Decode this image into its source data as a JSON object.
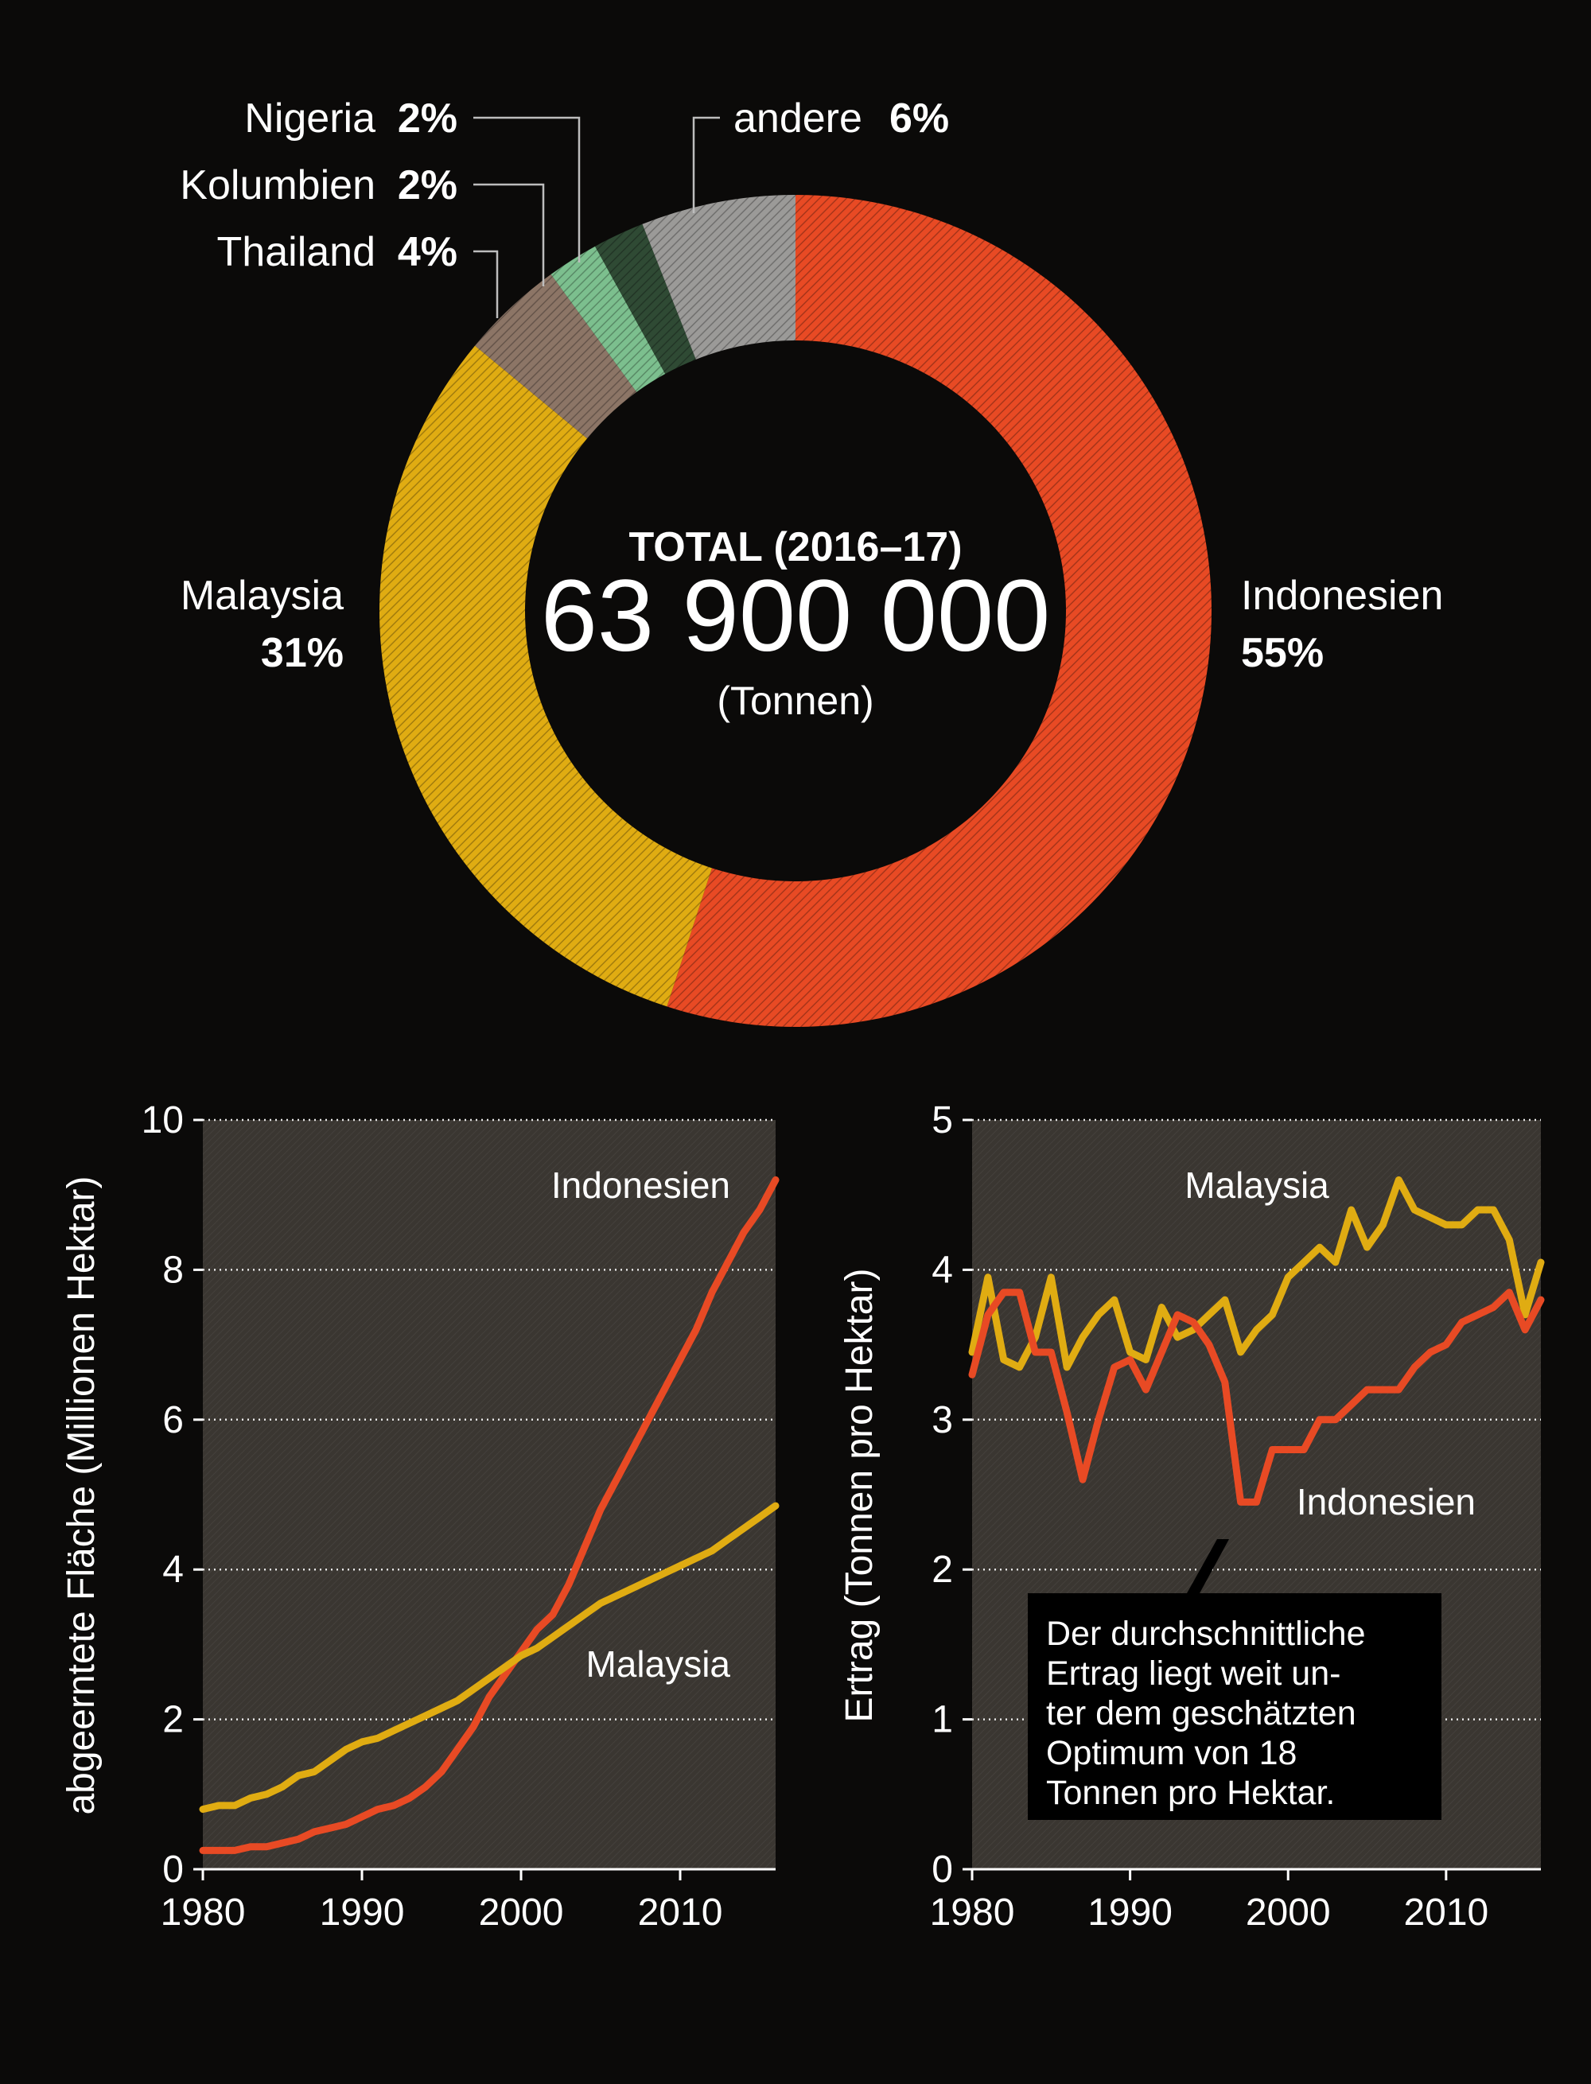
{
  "chart_data": [
    {
      "type": "pie",
      "title": "TOTAL (2016–17)",
      "total_value": "63 900 000",
      "total_unit": "(Tonnen)",
      "slices": [
        {
          "label": "Indonesien",
          "pct_label": "55%",
          "value": 55,
          "color": "#e84a24"
        },
        {
          "label": "Malaysia",
          "pct_label": "31%",
          "value": 31,
          "color": "#e0ac12"
        },
        {
          "label": "Thailand",
          "pct_label": "4%",
          "value": 4,
          "color": "#8c7566"
        },
        {
          "label": "Kolumbien",
          "pct_label": "2%",
          "value": 2,
          "color": "#7cbf8e"
        },
        {
          "label": "Nigeria",
          "pct_label": "2%",
          "value": 2,
          "color": "#2f4a34"
        },
        {
          "label": "andere",
          "pct_label": "6%",
          "value": 6,
          "color": "#9b9a98"
        }
      ]
    },
    {
      "type": "line",
      "ylabel": "abgeerntete Fläche (Millionen Hektar)",
      "ylim": [
        0,
        10
      ],
      "yticks": [
        "0",
        "2",
        "4",
        "6",
        "8",
        "10"
      ],
      "xlim": [
        1980,
        2016
      ],
      "xticks": [
        "1980",
        "1990",
        "2000",
        "2010"
      ],
      "series": [
        {
          "name": "Indonesien",
          "color": "#e84a24",
          "x": [
            1980,
            1981,
            1982,
            1983,
            1984,
            1985,
            1986,
            1987,
            1988,
            1989,
            1990,
            1991,
            1992,
            1993,
            1994,
            1995,
            1996,
            1997,
            1998,
            1999,
            2000,
            2001,
            2002,
            2003,
            2004,
            2005,
            2006,
            2007,
            2008,
            2009,
            2010,
            2011,
            2012,
            2013,
            2014,
            2015,
            2016
          ],
          "y": [
            0.25,
            0.25,
            0.25,
            0.3,
            0.3,
            0.35,
            0.4,
            0.5,
            0.55,
            0.6,
            0.7,
            0.8,
            0.85,
            0.95,
            1.1,
            1.3,
            1.6,
            1.9,
            2.3,
            2.6,
            2.9,
            3.2,
            3.4,
            3.8,
            4.3,
            4.8,
            5.2,
            5.6,
            6.0,
            6.4,
            6.8,
            7.2,
            7.7,
            8.1,
            8.5,
            8.8,
            9.2
          ]
        },
        {
          "name": "Malaysia",
          "color": "#e0ac12",
          "x": [
            1980,
            1981,
            1982,
            1983,
            1984,
            1985,
            1986,
            1987,
            1988,
            1989,
            1990,
            1991,
            1992,
            1993,
            1994,
            1995,
            1996,
            1997,
            1998,
            1999,
            2000,
            2001,
            2002,
            2003,
            2004,
            2005,
            2006,
            2007,
            2008,
            2009,
            2010,
            2011,
            2012,
            2013,
            2014,
            2015,
            2016
          ],
          "y": [
            0.8,
            0.85,
            0.85,
            0.95,
            1.0,
            1.1,
            1.25,
            1.3,
            1.45,
            1.6,
            1.7,
            1.75,
            1.85,
            1.95,
            2.05,
            2.15,
            2.25,
            2.4,
            2.55,
            2.7,
            2.85,
            2.95,
            3.1,
            3.25,
            3.4,
            3.55,
            3.65,
            3.75,
            3.85,
            3.95,
            4.05,
            4.15,
            4.25,
            4.4,
            4.55,
            4.7,
            4.85
          ]
        }
      ]
    },
    {
      "type": "line",
      "ylabel": "Ertrag (Tonnen pro Hektar)",
      "ylim": [
        0,
        5
      ],
      "yticks": [
        "0",
        "1",
        "2",
        "3",
        "4",
        "5"
      ],
      "xlim": [
        1980,
        2016
      ],
      "xticks": [
        "1980",
        "1990",
        "2000",
        "2010"
      ],
      "annotation": "Der durchschnittliche Ertrag liegt weit unter dem geschätzten Optimum von 18 Tonnen pro Hektar.",
      "annotation_lines": [
        "Der durchschnittliche",
        "Ertrag liegt weit un-",
        "ter dem geschätzten",
        "Optimum von 18",
        "Tonnen pro Hektar."
      ],
      "series": [
        {
          "name": "Malaysia",
          "color": "#e0ac12",
          "x": [
            1980,
            1981,
            1982,
            1983,
            1984,
            1985,
            1986,
            1987,
            1988,
            1989,
            1990,
            1991,
            1992,
            1993,
            1994,
            1995,
            1996,
            1997,
            1998,
            1999,
            2000,
            2001,
            2002,
            2003,
            2004,
            2005,
            2006,
            2007,
            2008,
            2009,
            2010,
            2011,
            2012,
            2013,
            2014,
            2015,
            2016
          ],
          "y": [
            3.45,
            3.95,
            3.4,
            3.35,
            3.55,
            3.95,
            3.35,
            3.55,
            3.7,
            3.8,
            3.45,
            3.4,
            3.75,
            3.55,
            3.6,
            3.7,
            3.8,
            3.45,
            3.6,
            3.7,
            3.95,
            4.05,
            4.15,
            4.05,
            4.4,
            4.15,
            4.3,
            4.6,
            4.4,
            4.35,
            4.3,
            4.3,
            4.4,
            4.4,
            4.2,
            3.7,
            4.05
          ]
        },
        {
          "name": "Indonesien",
          "color": "#e84a24",
          "x": [
            1980,
            1981,
            1982,
            1983,
            1984,
            1985,
            1986,
            1987,
            1988,
            1989,
            1990,
            1991,
            1992,
            1993,
            1994,
            1995,
            1996,
            1997,
            1998,
            1999,
            2000,
            2001,
            2002,
            2003,
            2004,
            2005,
            2006,
            2007,
            2008,
            2009,
            2010,
            2011,
            2012,
            2013,
            2014,
            2015,
            2016
          ],
          "y": [
            3.3,
            3.7,
            3.85,
            3.85,
            3.45,
            3.45,
            3.05,
            2.6,
            3.0,
            3.35,
            3.4,
            3.2,
            3.45,
            3.7,
            3.65,
            3.5,
            3.25,
            2.45,
            2.45,
            2.8,
            2.8,
            2.8,
            3.0,
            3.0,
            3.1,
            3.2,
            3.2,
            3.2,
            3.35,
            3.45,
            3.5,
            3.65,
            3.7,
            3.75,
            3.85,
            3.6,
            3.8
          ]
        }
      ]
    }
  ]
}
